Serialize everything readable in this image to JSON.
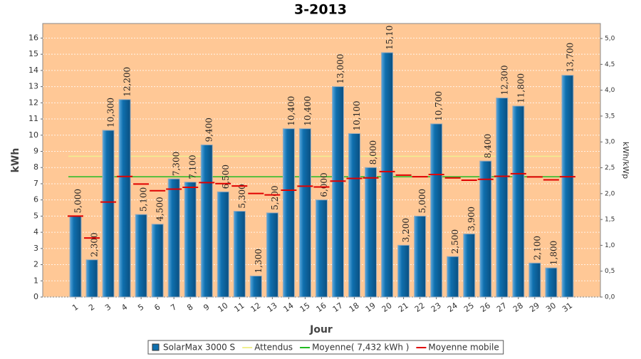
{
  "chart_data": {
    "type": "bar",
    "title": "3-2013",
    "xlabel": "Jour",
    "ylabel": "kWh",
    "y2label": "kWh/kWp",
    "categories": [
      "1",
      "2",
      "3",
      "4",
      "5",
      "6",
      "7",
      "8",
      "9",
      "10",
      "11",
      "12",
      "13",
      "14",
      "15",
      "16",
      "17",
      "18",
      "19",
      "20",
      "21",
      "22",
      "23",
      "24",
      "25",
      "26",
      "27",
      "28",
      "29",
      "30",
      "31"
    ],
    "series": [
      {
        "name": "SolarMax 3000 S",
        "color": "#0f6fae",
        "values": [
          5.0,
          2.3,
          10.3,
          12.2,
          5.1,
          4.5,
          7.3,
          7.1,
          9.4,
          6.5,
          5.3,
          1.3,
          5.2,
          10.4,
          10.4,
          6.0,
          13.0,
          10.1,
          8.0,
          15.1,
          3.2,
          5.0,
          10.7,
          2.5,
          3.9,
          8.4,
          12.3,
          11.8,
          2.1,
          1.8,
          13.7
        ],
        "value_labels": [
          "5,000",
          "2,300",
          "10,300",
          "12,200",
          "5,100",
          "4,500",
          "7,300",
          "7,100",
          "9,400",
          "6,500",
          "5,300",
          "1,300",
          "5,200",
          "10,400",
          "10,400",
          "6,000",
          "13,000",
          "10,100",
          "8,000",
          "15,10",
          "3,200",
          "5,000",
          "10,700",
          "2,500",
          "3,900",
          "8,400",
          "12,300",
          "11,800",
          "2,100",
          "1,800",
          "13,700"
        ]
      },
      {
        "name": "Moyenne mobile",
        "color": "#e00000",
        "values": [
          5.0,
          3.65,
          5.87,
          7.45,
          6.98,
          6.57,
          6.67,
          6.78,
          7.07,
          7.01,
          6.86,
          6.4,
          6.31,
          6.6,
          6.85,
          6.8,
          7.16,
          7.33,
          7.36,
          7.75,
          7.53,
          7.43,
          7.57,
          7.36,
          7.22,
          7.27,
          7.46,
          7.62,
          7.42,
          7.24,
          7.43
        ]
      }
    ],
    "reference_lines": [
      {
        "name": "Attendus",
        "color": "#f0f090",
        "value": 8.7
      },
      {
        "name": "Moyenne( 7,432 kWh )",
        "color": "#22bb22",
        "value": 7.432
      }
    ],
    "ylim": [
      0,
      16.9
    ],
    "yticks": [
      0,
      1,
      2,
      3,
      4,
      5,
      6,
      7,
      8,
      9,
      10,
      11,
      12,
      13,
      14,
      15,
      16
    ],
    "y2lim": [
      0,
      5.29
    ],
    "y2ticks": [
      {
        "value": 0,
        "label": "0,0"
      },
      {
        "value": 0.5,
        "label": "0,5"
      },
      {
        "value": 1,
        "label": "1,0"
      },
      {
        "value": 1.5,
        "label": "1,5"
      },
      {
        "value": 2,
        "label": "2,0"
      },
      {
        "value": 2.5,
        "label": "2,5"
      },
      {
        "value": 3,
        "label": "3,0"
      },
      {
        "value": 3.5,
        "label": "3,5"
      },
      {
        "value": 4,
        "label": "4,0"
      },
      {
        "value": 4.5,
        "label": "4,5"
      },
      {
        "value": 5,
        "label": "5,0"
      }
    ],
    "grid": true,
    "background": "#ffc896"
  }
}
